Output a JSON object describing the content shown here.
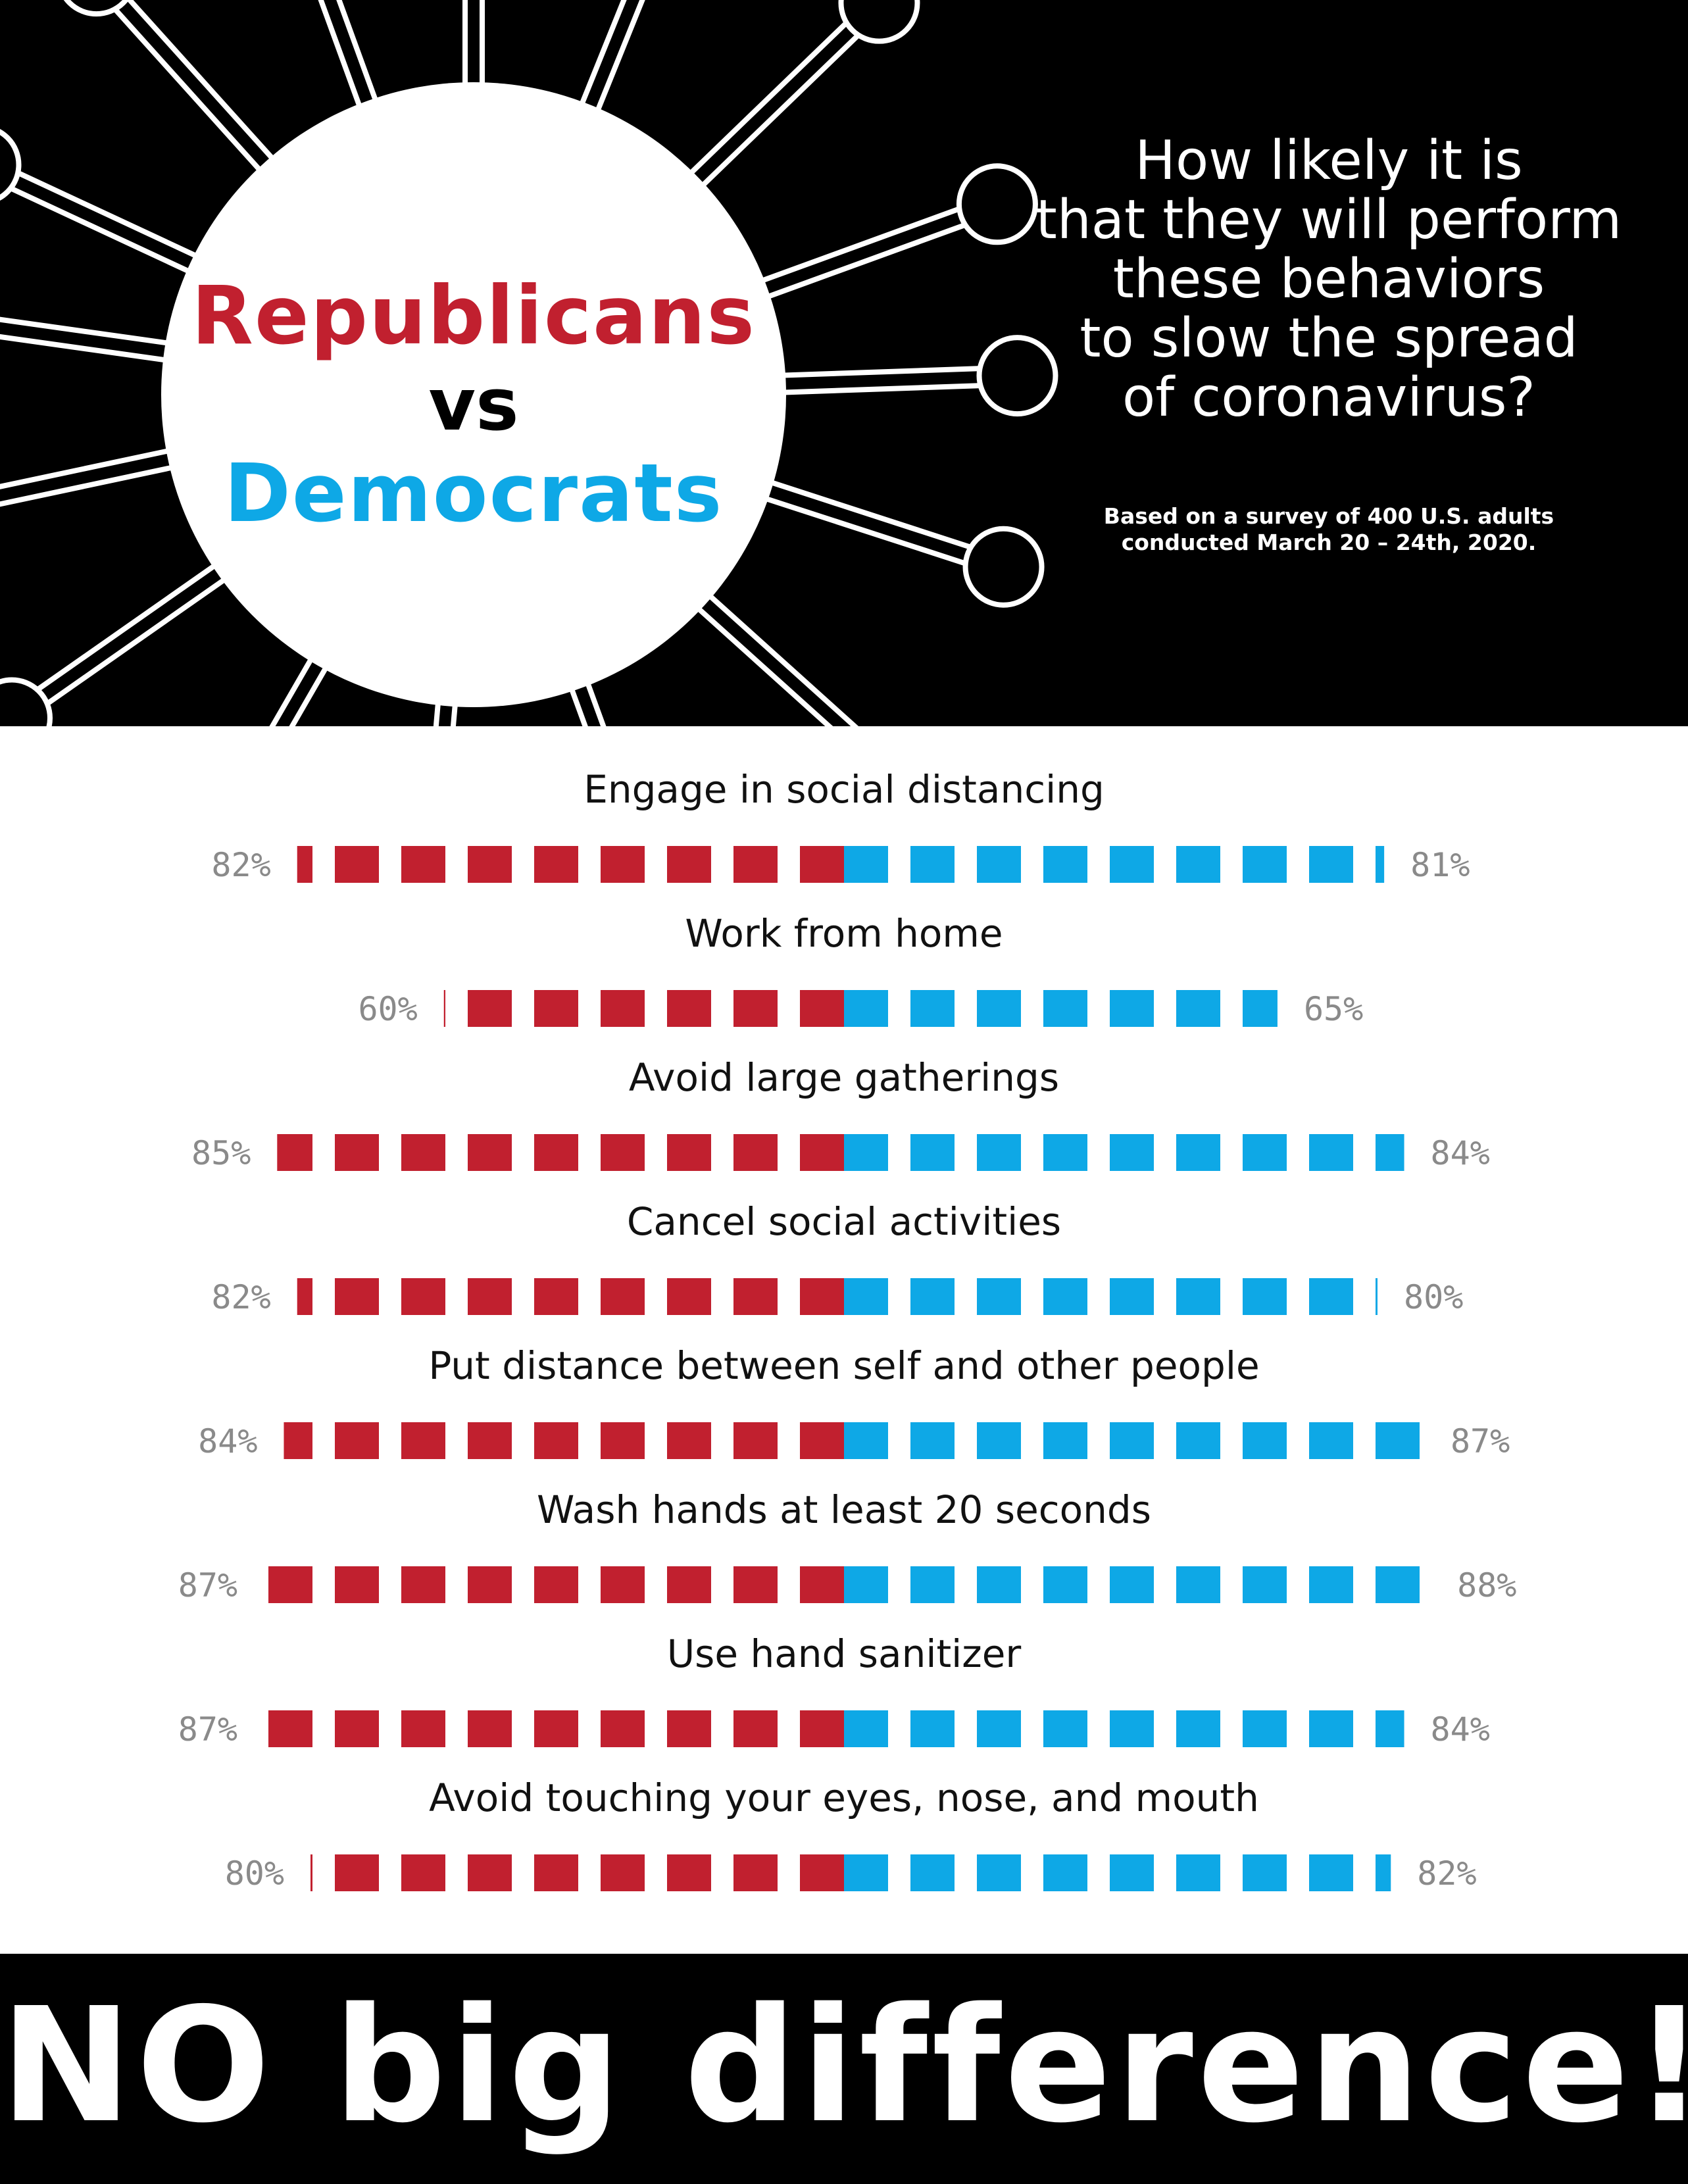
{
  "title": {
    "republicans": "Republicans",
    "vs": "vs",
    "democrats": "Democrats"
  },
  "question_lines": [
    "How likely it is",
    "that they will perform",
    "these behaviors",
    "to slow the spread",
    "of coronavirus?"
  ],
  "survey_note_lines": [
    "Based on a survey of 400 U.S. adults",
    "conducted March 20 – 24th, 2020."
  ],
  "footer": "NO big difference!",
  "colors": {
    "republicans": "#c1202f",
    "democrats": "#0ea8e6",
    "background": "#000000",
    "label_gray": "#8a8a8a"
  },
  "chart_data": {
    "type": "bar",
    "orientation": "diverging horizontal (dashed bars)",
    "series": [
      {
        "name": "Republicans",
        "color": "#c1202f",
        "values": [
          82,
          60,
          85,
          82,
          84,
          87,
          87,
          80
        ]
      },
      {
        "name": "Democrats",
        "color": "#0ea8e6",
        "values": [
          81,
          65,
          84,
          80,
          87,
          88,
          84,
          82
        ]
      }
    ],
    "categories": [
      "Engage in social distancing",
      "Work from home",
      "Avoid large gatherings",
      "Cancel social activities",
      "Put distance between self and other people",
      "Wash hands at least 20 seconds",
      "Use hand sanitizer",
      "Avoid touching your eyes, nose, and mouth"
    ],
    "rep_labels": [
      "82%",
      "60%",
      "85%",
      "82%",
      "84%",
      "87%",
      "87%",
      "80%"
    ],
    "dem_labels": [
      "81%",
      "65%",
      "84%",
      "80%",
      "87%",
      "88%",
      "84%",
      "82%"
    ],
    "unit": "%"
  }
}
